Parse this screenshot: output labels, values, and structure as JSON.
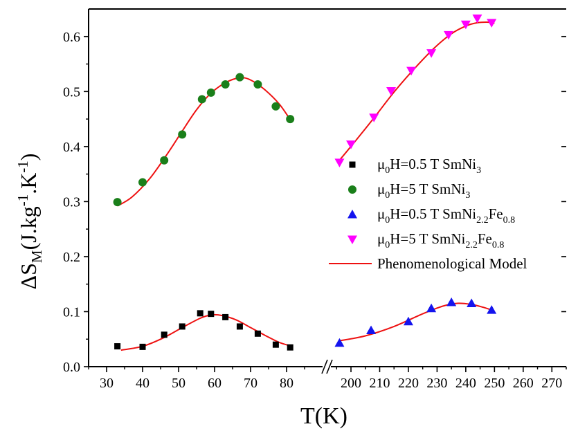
{
  "chart_data": {
    "type": "scatter",
    "xlabel": "T(K)",
    "ylabel": "ΔS_M(J.kg^-1.K^-1)",
    "ylabel_parts": {
      "main": "ΔS",
      "sub": "M",
      "unit_a": "(J.kg",
      "sup_a": "-1",
      "unit_b": "K",
      "sup_b": "-1",
      "close": ")"
    },
    "ylim": [
      0.0,
      0.65
    ],
    "y_ticks": [
      "0.0",
      "0.1",
      "0.2",
      "0.3",
      "0.4",
      "0.5",
      "0.6"
    ],
    "x_segments": [
      {
        "range": [
          25,
          90
        ],
        "ticks": [
          30,
          40,
          50,
          60,
          70,
          80
        ]
      },
      {
        "range": [
          193,
          275
        ],
        "ticks": [
          200,
          210,
          220,
          230,
          240,
          250,
          260,
          270
        ]
      }
    ],
    "axis_break": "//",
    "legend_position": "right",
    "colors": {
      "black": "#000000",
      "green": "#1a7f1a",
      "blue": "#1414ee",
      "magenta": "#ff00ff",
      "red": "#ee1111"
    },
    "series": [
      {
        "marker": "square",
        "color": "#000000",
        "legend": {
          "prefix": "μ",
          "sub1": "0",
          "mid": "H=0.5 T SmNi",
          "sub2": "3",
          "suffix": "",
          "sub3": ""
        },
        "points": [
          [
            33,
            0.037
          ],
          [
            40,
            0.036
          ],
          [
            46,
            0.058
          ],
          [
            51,
            0.073
          ],
          [
            56,
            0.097
          ],
          [
            59,
            0.096
          ],
          [
            63,
            0.09
          ],
          [
            67,
            0.073
          ],
          [
            72,
            0.06
          ],
          [
            77,
            0.04
          ],
          [
            81,
            0.035
          ]
        ]
      },
      {
        "marker": "circle",
        "color": "#1a7f1a",
        "legend": {
          "prefix": "μ",
          "sub1": "0",
          "mid": "H=5 T   SmNi",
          "sub2": "3",
          "suffix": "",
          "sub3": ""
        },
        "points": [
          [
            33,
            0.299
          ],
          [
            40,
            0.335
          ],
          [
            46,
            0.375
          ],
          [
            51,
            0.422
          ],
          [
            56.5,
            0.486
          ],
          [
            59,
            0.498
          ],
          [
            63,
            0.513
          ],
          [
            67,
            0.526
          ],
          [
            72,
            0.513
          ],
          [
            77,
            0.473
          ],
          [
            81,
            0.45
          ]
        ]
      },
      {
        "marker": "triangle-up",
        "color": "#1414ee",
        "legend": {
          "prefix": "μ",
          "sub1": "0",
          "mid": "H=0.5 T SmNi",
          "sub2": "2.2",
          "suffix": "Fe",
          "sub3": "0.8"
        },
        "points": [
          [
            196,
            0.043
          ],
          [
            207,
            0.066
          ],
          [
            220,
            0.082
          ],
          [
            228,
            0.106
          ],
          [
            235,
            0.117
          ],
          [
            242,
            0.115
          ],
          [
            249,
            0.103
          ]
        ]
      },
      {
        "marker": "triangle-down",
        "color": "#ff00ff",
        "legend": {
          "prefix": "μ",
          "sub1": "0",
          "mid": "H=5 T   SmNi",
          "sub2": "2.2",
          "suffix": "Fe",
          "sub3": "0.8"
        },
        "points": [
          [
            196,
            0.371
          ],
          [
            200,
            0.404
          ],
          [
            208,
            0.453
          ],
          [
            214,
            0.501
          ],
          [
            221,
            0.538
          ],
          [
            228,
            0.57
          ],
          [
            234,
            0.603
          ],
          [
            240,
            0.622
          ],
          [
            244,
            0.633
          ],
          [
            249,
            0.625
          ]
        ]
      }
    ],
    "fits": [
      {
        "color": "#ee1111",
        "points": [
          [
            34,
            0.03
          ],
          [
            40,
            0.037
          ],
          [
            46,
            0.053
          ],
          [
            51,
            0.071
          ],
          [
            56,
            0.088
          ],
          [
            59,
            0.094
          ],
          [
            62,
            0.093
          ],
          [
            66,
            0.085
          ],
          [
            70,
            0.071
          ],
          [
            74,
            0.057
          ],
          [
            78,
            0.044
          ],
          [
            81,
            0.038
          ]
        ]
      },
      {
        "color": "#ee1111",
        "points": [
          [
            33,
            0.292
          ],
          [
            37,
            0.308
          ],
          [
            42,
            0.342
          ],
          [
            47,
            0.388
          ],
          [
            51,
            0.428
          ],
          [
            55,
            0.467
          ],
          [
            59,
            0.497
          ],
          [
            63,
            0.516
          ],
          [
            67,
            0.525
          ],
          [
            70,
            0.521
          ],
          [
            74,
            0.503
          ],
          [
            78,
            0.477
          ],
          [
            81,
            0.449
          ]
        ]
      },
      {
        "color": "#ee1111",
        "points": [
          [
            196,
            0.047
          ],
          [
            205,
            0.056
          ],
          [
            215,
            0.073
          ],
          [
            225,
            0.096
          ],
          [
            232,
            0.11
          ],
          [
            237,
            0.115
          ],
          [
            242,
            0.113
          ],
          [
            246,
            0.108
          ],
          [
            250,
            0.101
          ]
        ]
      },
      {
        "color": "#ee1111",
        "points": [
          [
            196,
            0.375
          ],
          [
            202,
            0.413
          ],
          [
            208,
            0.452
          ],
          [
            215,
            0.499
          ],
          [
            222,
            0.541
          ],
          [
            229,
            0.579
          ],
          [
            235,
            0.605
          ],
          [
            240,
            0.619
          ],
          [
            244,
            0.625
          ],
          [
            248,
            0.626
          ],
          [
            250,
            0.624
          ]
        ]
      }
    ],
    "fit_legend": "Phenomenological Model"
  }
}
